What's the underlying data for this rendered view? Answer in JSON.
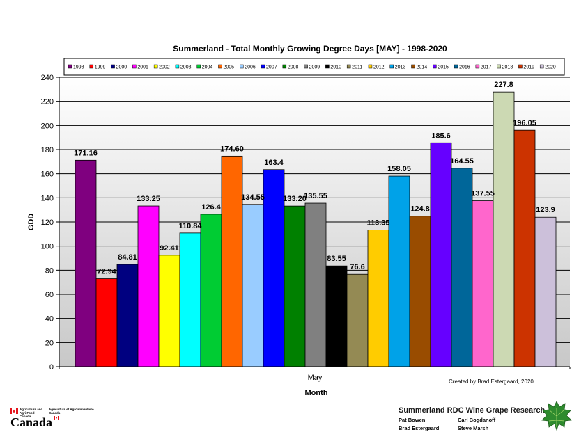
{
  "chart_data": {
    "type": "bar",
    "title": "Summerland - Total Monthly Growing Degree Days [MAY] - 1998-2020",
    "xlabel": "Month",
    "ylabel": "GDD",
    "categories": [
      "May"
    ],
    "ylim": [
      0,
      240
    ],
    "yticks": [
      0,
      20,
      40,
      60,
      80,
      100,
      120,
      140,
      160,
      180,
      200,
      220,
      240
    ],
    "grid": true,
    "legend_position": "top",
    "series": [
      {
        "name": "1998",
        "values": [
          171.16
        ],
        "label": "171.16",
        "color": "#7f007f"
      },
      {
        "name": "1999",
        "values": [
          72.94
        ],
        "label": "72.94",
        "color": "#ff0000"
      },
      {
        "name": "2000",
        "values": [
          84.81
        ],
        "label": "84.81",
        "color": "#000080"
      },
      {
        "name": "2001",
        "values": [
          133.25
        ],
        "label": "133.25",
        "color": "#ff00ff"
      },
      {
        "name": "2002",
        "values": [
          92.41
        ],
        "label": "92.41",
        "color": "#ffff00"
      },
      {
        "name": "2003",
        "values": [
          110.84
        ],
        "label": "110.84",
        "color": "#00ffff"
      },
      {
        "name": "2004",
        "values": [
          126.4
        ],
        "label": "126.4",
        "color": "#00cc33"
      },
      {
        "name": "2005",
        "values": [
          174.6
        ],
        "label": "174.60",
        "color": "#ff6600"
      },
      {
        "name": "2006",
        "values": [
          134.55
        ],
        "label": "134.55",
        "color": "#99ccff"
      },
      {
        "name": "2007",
        "values": [
          163.4
        ],
        "label": "163.4",
        "color": "#0000ff"
      },
      {
        "name": "2008",
        "values": [
          133.2
        ],
        "label": "133.20",
        "color": "#008000"
      },
      {
        "name": "2009",
        "values": [
          135.55
        ],
        "label": "135.55",
        "color": "#808080"
      },
      {
        "name": "2010",
        "values": [
          83.55
        ],
        "label": "83.55",
        "color": "#000000"
      },
      {
        "name": "2011",
        "values": [
          76.6
        ],
        "label": "76.6",
        "color": "#948a54"
      },
      {
        "name": "2012",
        "values": [
          113.35
        ],
        "label": "113.35",
        "color": "#ffcc00"
      },
      {
        "name": "2013",
        "values": [
          158.05
        ],
        "label": "158.05",
        "color": "#00a2e8"
      },
      {
        "name": "2014",
        "values": [
          124.8
        ],
        "label": "124.8",
        "color": "#994c00"
      },
      {
        "name": "2015",
        "values": [
          185.6
        ],
        "label": "185.6",
        "color": "#6600ff"
      },
      {
        "name": "2016",
        "values": [
          164.55
        ],
        "label": "164.55",
        "color": "#006699"
      },
      {
        "name": "2017",
        "values": [
          137.55
        ],
        "label": "137.55",
        "color": "#ff66cc"
      },
      {
        "name": "2018",
        "values": [
          227.8
        ],
        "label": "227.8",
        "color": "#ccd9b3"
      },
      {
        "name": "2019",
        "values": [
          196.05
        ],
        "label": "196.05",
        "color": "#cc3300"
      },
      {
        "name": "2020",
        "values": [
          123.9
        ],
        "label": "123.9",
        "color": "#ccc0da"
      }
    ]
  },
  "footer": {
    "credit": "Created by Brad Estergaard, 2020",
    "org_title": "Summerland RDC Wine Grape Research",
    "names": [
      "Pat Bowen",
      "Carl Bogdanoff",
      "Brad Estergaard",
      "Steve Marsh"
    ],
    "logo_en": "Agriculture and Agri-Food Canada",
    "logo_fr": "Agriculture et Agroalimentaire Canada",
    "logo_word": "Canada"
  },
  "colors": {
    "plot_bg_top": "#ffffff",
    "plot_bg_bottom": "#c8c8c8",
    "canada_red": "#e4141b",
    "leaf_green": "#2e8b2e"
  },
  "icons": [
    "canada-flag-icon",
    "grape-leaf-icon"
  ]
}
